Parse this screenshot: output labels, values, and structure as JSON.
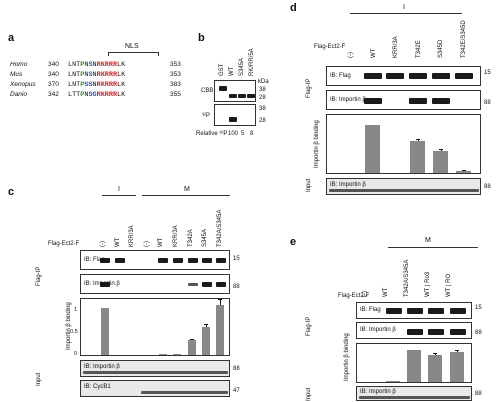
{
  "panel_a": {
    "label": "a",
    "nls_label": "NLS",
    "rows": [
      {
        "species": "Homo",
        "start": "340",
        "pre": "LNT",
        "p": "P",
        "n": "N",
        "s": "S",
        "n2": "N",
        "rk": "RKRRR",
        "post": "LK",
        "end": "353"
      },
      {
        "species": "Mus",
        "start": "340",
        "pre": "LNT",
        "p": "P",
        "n": "N",
        "s": "S",
        "n2": "N",
        "rk": "RKRRR",
        "post": "LK",
        "end": "353"
      },
      {
        "species": "Xenopus",
        "start": "370",
        "pre": "LNT",
        "p": "P",
        "n": "S",
        "s": "S",
        "n2": "N",
        "rk": "RKRRR",
        "post": "LK",
        "end": "383"
      },
      {
        "species": "Danio",
        "start": "342",
        "pre": "LTT",
        "p": "P",
        "n": "N",
        "s": "S",
        "n2": "G",
        "rk": "RKRRR",
        "post": "LK",
        "end": "355"
      }
    ]
  },
  "panel_b": {
    "label": "b",
    "lanes": [
      "GST",
      "WT",
      "S345A",
      "RK/RR/5A"
    ],
    "rows": [
      "CBB",
      "³²P"
    ],
    "kda_unit": "kDa",
    "kda_marks": [
      "38",
      "28",
      "38",
      "28"
    ],
    "relative_label": "Relative ³²P",
    "relative_values": [
      "100",
      "5",
      "8"
    ]
  },
  "panel_c": {
    "label": "c",
    "group_I": "I",
    "group_M": "M",
    "flag_label": "Flag-Ect2-F",
    "lanes": [
      "(-)",
      "WT",
      "KRR/3A",
      "(-)",
      "WT",
      "KRR/3A",
      "T342A",
      "S345A",
      "T342A/S345A"
    ],
    "flag_ip": "Flag-IP",
    "ib_flag": "IB: Flag",
    "ib_importin": "IB: Importin β",
    "chart_ylabel": "Importin β binding",
    "yticks": [
      "1",
      "0.5",
      "0"
    ],
    "input_label": "Input",
    "ib_importin_input": "IB: Importin β",
    "ib_cycb1": "IB: CycB1",
    "kda": [
      "15",
      "88",
      "88",
      "47"
    ]
  },
  "panel_d": {
    "label": "d",
    "group_I": "I",
    "flag_label": "Flag-Ect2-F",
    "lanes": [
      "(-)",
      "WT",
      "KRR/3A",
      "T342E",
      "S345D",
      "T342E/S345D"
    ],
    "flag_ip": "Flag-IP",
    "ib_flag": "IB: Flag",
    "ib_importin": "IB: Importin β",
    "chart_ylabel": "Importin β binding",
    "input_label": "Input",
    "ib_importin_input": "IB: Importin β",
    "kda": [
      "15",
      "88",
      "88"
    ]
  },
  "panel_e": {
    "label": "e",
    "group_M": "M",
    "flag_label": "Flag-Ect2-F",
    "lanes": [
      "(-)",
      "WT",
      "T342A/S345A",
      "WT | Ro3",
      "WT | RO"
    ],
    "flag_ip": "Flag-IP",
    "ib_flag": "IB: Flag",
    "ib_importin": "IB: Importin β",
    "chart_ylabel": "Importin β binding",
    "input_label": "Input",
    "ib_importin_input": "IB: Importin β",
    "kda": [
      "15",
      "88",
      "88"
    ]
  },
  "chart_data": [
    {
      "type": "bar",
      "panel": "c",
      "categories": [
        "(-)",
        "WT",
        "KRR/3A",
        "(-)",
        "WT",
        "KRR/3A",
        "T342A",
        "S345A",
        "T342A/S345A"
      ],
      "values": [
        0,
        1.0,
        0,
        0,
        0.02,
        0.02,
        0.32,
        0.6,
        1.08
      ],
      "errors": [
        0,
        0,
        0,
        0,
        0,
        0,
        0.03,
        0.06,
        0.12
      ],
      "ylabel": "Importin β binding",
      "ylim": [
        0,
        1.2
      ]
    },
    {
      "type": "bar",
      "panel": "d",
      "categories": [
        "(-)",
        "WT",
        "KRR/3A",
        "T342E",
        "S345D",
        "T342E/S345D"
      ],
      "values": [
        0,
        1.0,
        0,
        0.66,
        0.45,
        0.05
      ],
      "errors": [
        0,
        0,
        0,
        0.05,
        0.05,
        0.02
      ],
      "ylabel": "Importin β binding",
      "ylim": [
        0,
        1.2
      ]
    },
    {
      "type": "bar",
      "panel": "e",
      "categories": [
        "(-)",
        "WT",
        "T342A/S345A",
        "WT | Ro3",
        "WT | RO"
      ],
      "values": [
        0,
        0.02,
        1.0,
        0.86,
        0.95
      ],
      "errors": [
        0,
        0,
        0,
        0.05,
        0.05
      ],
      "ylabel": "Importin β binding",
      "ylim": [
        0,
        1.2
      ]
    }
  ]
}
